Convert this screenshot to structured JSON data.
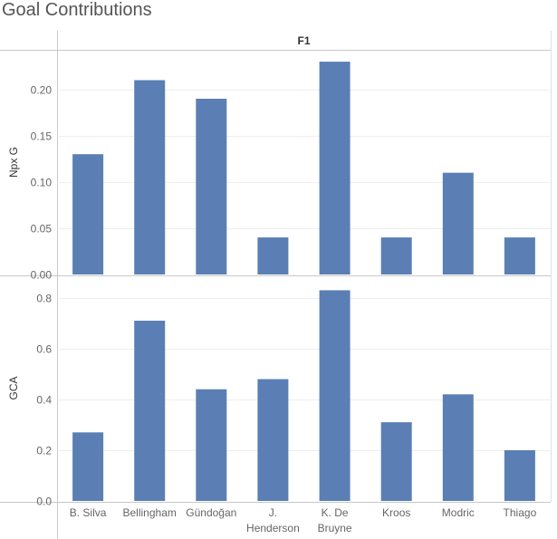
{
  "title": "Goal Contributions",
  "chart_data": {
    "type": "bar",
    "facet_label": "F1",
    "categories": [
      "B. Silva",
      "Bellingham",
      "Gündoğan",
      "J. Henderson",
      "K. De Bruyne",
      "Kroos",
      "Modric",
      "Thiago"
    ],
    "category_lines": [
      [
        "B. Silva"
      ],
      [
        "Bellingham"
      ],
      [
        "Gündoğan"
      ],
      [
        "J.",
        "Henderson"
      ],
      [
        "K. De",
        "Bruyne"
      ],
      [
        "Kroos"
      ],
      [
        "Modric"
      ],
      [
        "Thiago"
      ]
    ],
    "bar_color": "#5b7fb4",
    "panels": [
      {
        "ylabel": "Npx G",
        "ylim": [
          0,
          0.235
        ],
        "ticks": [
          0.0,
          0.05,
          0.1,
          0.15,
          0.2
        ],
        "tick_labels": [
          "0.00",
          "0.05",
          "0.10",
          "0.15",
          "0.20"
        ],
        "values": [
          0.13,
          0.21,
          0.19,
          0.04,
          0.23,
          0.04,
          0.11,
          0.04
        ]
      },
      {
        "ylabel": "GCA",
        "ylim": [
          0,
          0.86
        ],
        "ticks": [
          0.0,
          0.2,
          0.4,
          0.6,
          0.8
        ],
        "tick_labels": [
          "0.0",
          "0.2",
          "0.4",
          "0.6",
          "0.8"
        ],
        "values": [
          0.27,
          0.71,
          0.44,
          0.48,
          0.83,
          0.31,
          0.42,
          0.2
        ]
      }
    ],
    "grid": true
  }
}
